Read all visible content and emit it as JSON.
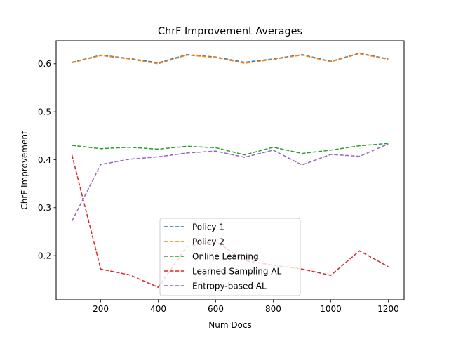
{
  "chart_data": {
    "type": "line",
    "title": "ChrF Improvement Averages",
    "xlabel": "Num Docs",
    "ylabel": "ChrF Improvement",
    "xlim": [
      45,
      1255
    ],
    "ylim": [
      0.108,
      0.648
    ],
    "x_ticks": [
      200,
      400,
      600,
      800,
      1000,
      1200
    ],
    "y_ticks": [
      0.2,
      0.3,
      0.4,
      0.5,
      0.6
    ],
    "x_tick_labels": [
      "200",
      "400",
      "600",
      "800",
      "1000",
      "1200"
    ],
    "y_tick_labels": [
      "0.2",
      "0.3",
      "0.4",
      "0.5",
      "0.6"
    ],
    "grid": false,
    "legend_position": "lower-center",
    "x": [
      100,
      200,
      300,
      400,
      500,
      600,
      700,
      800,
      900,
      1000,
      1100,
      1200
    ],
    "series": [
      {
        "name": "Policy 1",
        "color": "#1f77b4",
        "style": "dashed",
        "values": [
          0.603,
          0.618,
          0.611,
          0.602,
          0.619,
          0.614,
          0.603,
          0.61,
          0.619,
          0.605,
          0.622,
          0.61
        ]
      },
      {
        "name": "Policy 2",
        "color": "#ff7f0e",
        "style": "dashed",
        "values": [
          0.602,
          0.617,
          0.61,
          0.6,
          0.618,
          0.613,
          0.601,
          0.609,
          0.618,
          0.604,
          0.621,
          0.609
        ]
      },
      {
        "name": "Online Learning",
        "color": "#2ca02c",
        "style": "dashed",
        "values": [
          0.43,
          0.423,
          0.426,
          0.422,
          0.428,
          0.425,
          0.41,
          0.426,
          0.413,
          0.42,
          0.429,
          0.434
        ]
      },
      {
        "name": "Learned Sampling AL",
        "color": "#d62728",
        "style": "dashed",
        "values": [
          0.41,
          0.172,
          0.16,
          0.134,
          0.219,
          0.23,
          0.19,
          0.18,
          0.172,
          0.159,
          0.21,
          0.177
        ]
      },
      {
        "name": "Entropy-based AL",
        "color": "#9467bd",
        "style": "dashed",
        "values": [
          0.272,
          0.39,
          0.401,
          0.406,
          0.414,
          0.418,
          0.405,
          0.42,
          0.389,
          0.411,
          0.407,
          0.433
        ]
      }
    ]
  }
}
